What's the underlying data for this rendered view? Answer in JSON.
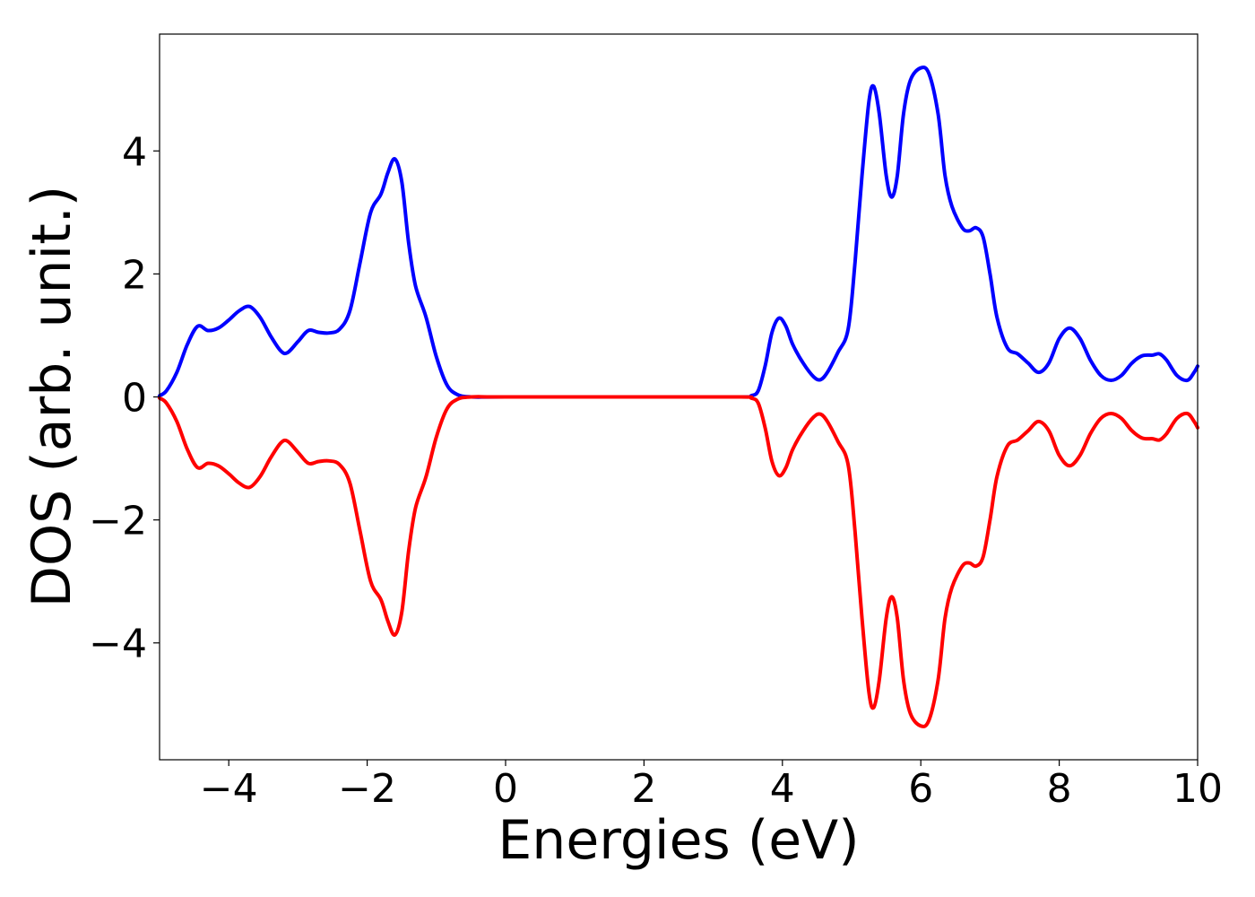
{
  "chart_data": {
    "type": "line",
    "title": "",
    "xlabel": "Energies (eV)",
    "ylabel": "DOS (arb. unit.)",
    "xlim": [
      -5,
      10
    ],
    "ylim": [
      -5.9,
      5.9
    ],
    "xticks": [
      -4,
      -2,
      0,
      2,
      4,
      6,
      8,
      10
    ],
    "yticks": [
      -4,
      -2,
      0,
      2,
      4
    ],
    "grid": false,
    "legend": "none",
    "series": [
      {
        "color": "#0000ff",
        "points": [
          [
            -5.0,
            0.02
          ],
          [
            -4.9,
            0.1
          ],
          [
            -4.75,
            0.4
          ],
          [
            -4.6,
            0.85
          ],
          [
            -4.45,
            1.15
          ],
          [
            -4.3,
            1.08
          ],
          [
            -4.15,
            1.12
          ],
          [
            -4.0,
            1.25
          ],
          [
            -3.85,
            1.4
          ],
          [
            -3.7,
            1.47
          ],
          [
            -3.55,
            1.3
          ],
          [
            -3.4,
            1.0
          ],
          [
            -3.25,
            0.75
          ],
          [
            -3.15,
            0.72
          ],
          [
            -3.0,
            0.9
          ],
          [
            -2.85,
            1.08
          ],
          [
            -2.7,
            1.05
          ],
          [
            -2.55,
            1.04
          ],
          [
            -2.4,
            1.1
          ],
          [
            -2.25,
            1.4
          ],
          [
            -2.1,
            2.2
          ],
          [
            -1.95,
            3.0
          ],
          [
            -1.8,
            3.3
          ],
          [
            -1.7,
            3.65
          ],
          [
            -1.6,
            3.87
          ],
          [
            -1.5,
            3.5
          ],
          [
            -1.4,
            2.5
          ],
          [
            -1.3,
            1.8
          ],
          [
            -1.15,
            1.3
          ],
          [
            -1.0,
            0.65
          ],
          [
            -0.85,
            0.2
          ],
          [
            -0.7,
            0.04
          ],
          [
            -0.5,
            0.0
          ],
          [
            0.0,
            0.0
          ],
          [
            2.0,
            0.0
          ],
          [
            3.4,
            0.0
          ],
          [
            3.55,
            0.02
          ],
          [
            3.65,
            0.1
          ],
          [
            3.75,
            0.5
          ],
          [
            3.85,
            1.05
          ],
          [
            3.95,
            1.28
          ],
          [
            4.05,
            1.15
          ],
          [
            4.15,
            0.85
          ],
          [
            4.3,
            0.55
          ],
          [
            4.45,
            0.33
          ],
          [
            4.55,
            0.28
          ],
          [
            4.65,
            0.4
          ],
          [
            4.8,
            0.72
          ],
          [
            4.95,
            1.1
          ],
          [
            5.05,
            2.2
          ],
          [
            5.15,
            3.6
          ],
          [
            5.25,
            4.8
          ],
          [
            5.32,
            5.05
          ],
          [
            5.4,
            4.6
          ],
          [
            5.5,
            3.6
          ],
          [
            5.58,
            3.25
          ],
          [
            5.66,
            3.6
          ],
          [
            5.75,
            4.6
          ],
          [
            5.85,
            5.15
          ],
          [
            6.0,
            5.35
          ],
          [
            6.12,
            5.25
          ],
          [
            6.25,
            4.6
          ],
          [
            6.35,
            3.6
          ],
          [
            6.45,
            3.1
          ],
          [
            6.6,
            2.75
          ],
          [
            6.7,
            2.7
          ],
          [
            6.8,
            2.75
          ],
          [
            6.9,
            2.6
          ],
          [
            7.0,
            2.0
          ],
          [
            7.1,
            1.3
          ],
          [
            7.25,
            0.8
          ],
          [
            7.4,
            0.7
          ],
          [
            7.55,
            0.55
          ],
          [
            7.7,
            0.4
          ],
          [
            7.85,
            0.55
          ],
          [
            8.0,
            0.95
          ],
          [
            8.15,
            1.12
          ],
          [
            8.3,
            0.95
          ],
          [
            8.45,
            0.6
          ],
          [
            8.6,
            0.35
          ],
          [
            8.75,
            0.27
          ],
          [
            8.9,
            0.35
          ],
          [
            9.05,
            0.55
          ],
          [
            9.2,
            0.67
          ],
          [
            9.35,
            0.68
          ],
          [
            9.45,
            0.7
          ],
          [
            9.55,
            0.6
          ],
          [
            9.7,
            0.35
          ],
          [
            9.85,
            0.27
          ],
          [
            9.95,
            0.4
          ],
          [
            10.0,
            0.5
          ]
        ]
      },
      {
        "color": "#ff0000",
        "points": [
          [
            -5.0,
            -0.02
          ],
          [
            -4.9,
            -0.1
          ],
          [
            -4.75,
            -0.4
          ],
          [
            -4.6,
            -0.85
          ],
          [
            -4.45,
            -1.15
          ],
          [
            -4.3,
            -1.08
          ],
          [
            -4.15,
            -1.12
          ],
          [
            -4.0,
            -1.25
          ],
          [
            -3.85,
            -1.4
          ],
          [
            -3.7,
            -1.47
          ],
          [
            -3.55,
            -1.3
          ],
          [
            -3.4,
            -1.0
          ],
          [
            -3.25,
            -0.75
          ],
          [
            -3.15,
            -0.72
          ],
          [
            -3.0,
            -0.9
          ],
          [
            -2.85,
            -1.08
          ],
          [
            -2.7,
            -1.05
          ],
          [
            -2.55,
            -1.04
          ],
          [
            -2.4,
            -1.1
          ],
          [
            -2.25,
            -1.4
          ],
          [
            -2.1,
            -2.2
          ],
          [
            -1.95,
            -3.0
          ],
          [
            -1.8,
            -3.3
          ],
          [
            -1.7,
            -3.65
          ],
          [
            -1.6,
            -3.87
          ],
          [
            -1.5,
            -3.5
          ],
          [
            -1.4,
            -2.5
          ],
          [
            -1.3,
            -1.8
          ],
          [
            -1.15,
            -1.3
          ],
          [
            -1.0,
            -0.65
          ],
          [
            -0.85,
            -0.2
          ],
          [
            -0.7,
            -0.04
          ],
          [
            -0.5,
            0.0
          ],
          [
            0.0,
            0.0
          ],
          [
            2.0,
            0.0
          ],
          [
            3.4,
            0.0
          ],
          [
            3.55,
            -0.02
          ],
          [
            3.65,
            -0.1
          ],
          [
            3.75,
            -0.5
          ],
          [
            3.85,
            -1.05
          ],
          [
            3.95,
            -1.28
          ],
          [
            4.05,
            -1.15
          ],
          [
            4.15,
            -0.85
          ],
          [
            4.3,
            -0.55
          ],
          [
            4.45,
            -0.33
          ],
          [
            4.55,
            -0.28
          ],
          [
            4.65,
            -0.4
          ],
          [
            4.8,
            -0.72
          ],
          [
            4.95,
            -1.1
          ],
          [
            5.05,
            -2.2
          ],
          [
            5.15,
            -3.6
          ],
          [
            5.25,
            -4.8
          ],
          [
            5.32,
            -5.05
          ],
          [
            5.4,
            -4.6
          ],
          [
            5.5,
            -3.6
          ],
          [
            5.58,
            -3.25
          ],
          [
            5.66,
            -3.6
          ],
          [
            5.75,
            -4.6
          ],
          [
            5.85,
            -5.15
          ],
          [
            6.0,
            -5.35
          ],
          [
            6.12,
            -5.25
          ],
          [
            6.25,
            -4.6
          ],
          [
            6.35,
            -3.6
          ],
          [
            6.45,
            -3.1
          ],
          [
            6.6,
            -2.75
          ],
          [
            6.7,
            -2.7
          ],
          [
            6.8,
            -2.75
          ],
          [
            6.9,
            -2.6
          ],
          [
            7.0,
            -2.0
          ],
          [
            7.1,
            -1.3
          ],
          [
            7.25,
            -0.8
          ],
          [
            7.4,
            -0.7
          ],
          [
            7.55,
            -0.55
          ],
          [
            7.7,
            -0.4
          ],
          [
            7.85,
            -0.55
          ],
          [
            8.0,
            -0.95
          ],
          [
            8.15,
            -1.12
          ],
          [
            8.3,
            -0.95
          ],
          [
            8.45,
            -0.6
          ],
          [
            8.6,
            -0.35
          ],
          [
            8.75,
            -0.27
          ],
          [
            8.9,
            -0.35
          ],
          [
            9.05,
            -0.55
          ],
          [
            9.2,
            -0.67
          ],
          [
            9.35,
            -0.68
          ],
          [
            9.45,
            -0.7
          ],
          [
            9.55,
            -0.6
          ],
          [
            9.7,
            -0.35
          ],
          [
            9.85,
            -0.27
          ],
          [
            9.95,
            -0.4
          ],
          [
            10.0,
            -0.5
          ]
        ]
      }
    ]
  }
}
